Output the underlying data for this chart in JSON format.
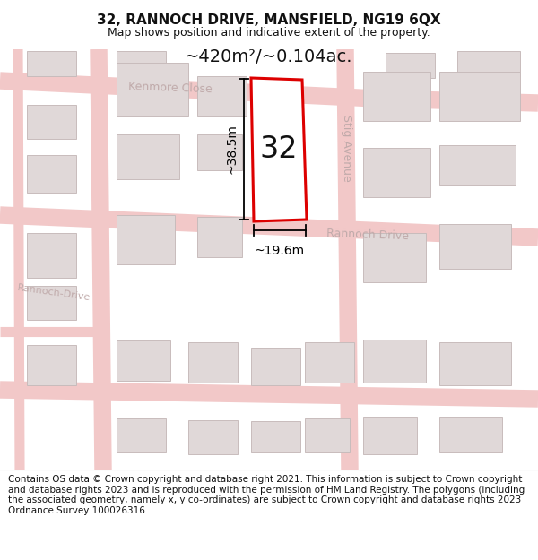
{
  "title": "32, RANNOCH DRIVE, MANSFIELD, NG19 6QX",
  "subtitle": "Map shows position and indicative extent of the property.",
  "footer": "Contains OS data © Crown copyright and database right 2021. This information is subject to Crown copyright and database rights 2023 and is reproduced with the permission of HM Land Registry. The polygons (including the associated geometry, namely x, y co-ordinates) are subject to Crown copyright and database rights 2023 Ordnance Survey 100026316.",
  "area_label": "~420m²/~0.104ac.",
  "width_label": "~19.6m",
  "height_label": "~38.5m",
  "plot_number": "32",
  "bg_color": "#ffffff",
  "map_bg": "#faf7f7",
  "road_color": "#f2c8c8",
  "building_fill": "#e0d8d8",
  "building_edge": "#c8bcbc",
  "plot_outline_color": "#dd0000",
  "plot_fill_color": "#ffffff",
  "dim_color": "#000000",
  "street_color": "#c0aaaa",
  "title_fontsize": 11,
  "subtitle_fontsize": 9,
  "footer_fontsize": 7.5,
  "dim_fontsize": 10,
  "plot_num_fontsize": 24,
  "street_fontsize": 9,
  "area_fontsize": 14
}
